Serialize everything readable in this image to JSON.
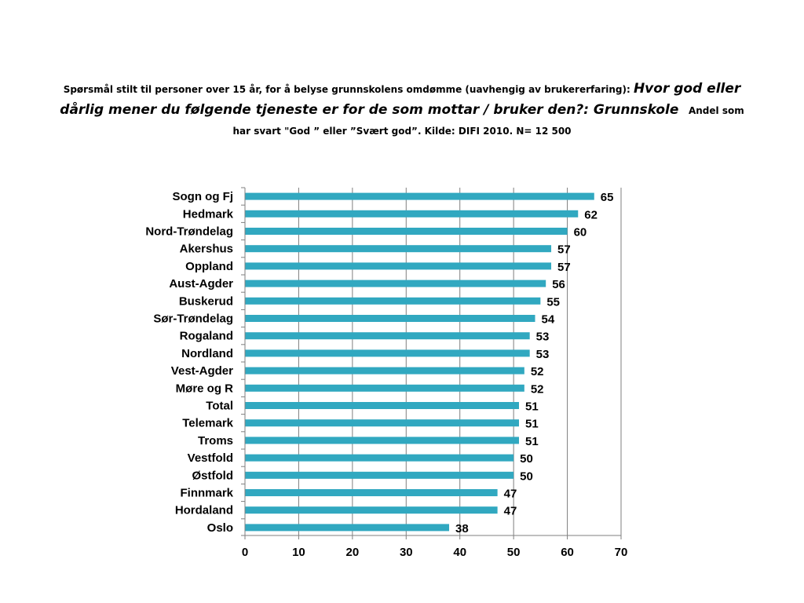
{
  "title": {
    "part1": "Spørsmål stilt til personer over 15 år, for å belyse grunnskolens omdømme (uavhengig av brukererfaring):",
    "question": "Hvor god eller dårlig mener du følgende tjeneste er for de som mottar / bruker den?: Grunnskole",
    "part2": "Andel som har svart \"God ” eller ”Svært god”. Kilde: DIFI 2010. N= 12 500"
  },
  "colors": {
    "bar": "#31A8C0",
    "grid": "#7f7f7f",
    "axis": "#7f7f7f",
    "text": "#000000"
  },
  "chart_data": {
    "type": "bar",
    "orientation": "horizontal",
    "categories": [
      "Sogn og Fj",
      "Hedmark",
      "Nord-Trøndelag",
      "Akershus",
      "Oppland",
      "Aust-Agder",
      "Buskerud",
      "Sør-Trøndelag",
      "Rogaland",
      "Nordland",
      "Vest-Agder",
      "Møre og R",
      "Total",
      "Telemark",
      "Troms",
      "Vestfold",
      "Østfold",
      "Finnmark",
      "Hordaland",
      "Oslo"
    ],
    "values": [
      65,
      62,
      60,
      57,
      57,
      56,
      55,
      54,
      53,
      53,
      52,
      52,
      51,
      51,
      51,
      50,
      50,
      47,
      47,
      38
    ],
    "value_labels": [
      "65",
      "62",
      "60",
      "57",
      "57",
      "56",
      "55",
      "54",
      "53",
      "53",
      "52",
      "52",
      "51",
      "51",
      "51",
      "50",
      "50",
      "47",
      "47",
      "38"
    ],
    "xlim": [
      0,
      70
    ],
    "xticks": [
      0,
      10,
      20,
      30,
      40,
      50,
      60,
      70
    ],
    "xtick_labels": [
      "0",
      "10",
      "20",
      "30",
      "40",
      "50",
      "60",
      "70"
    ],
    "grid": "vertical",
    "legend": "none",
    "xlabel": "",
    "ylabel": ""
  }
}
